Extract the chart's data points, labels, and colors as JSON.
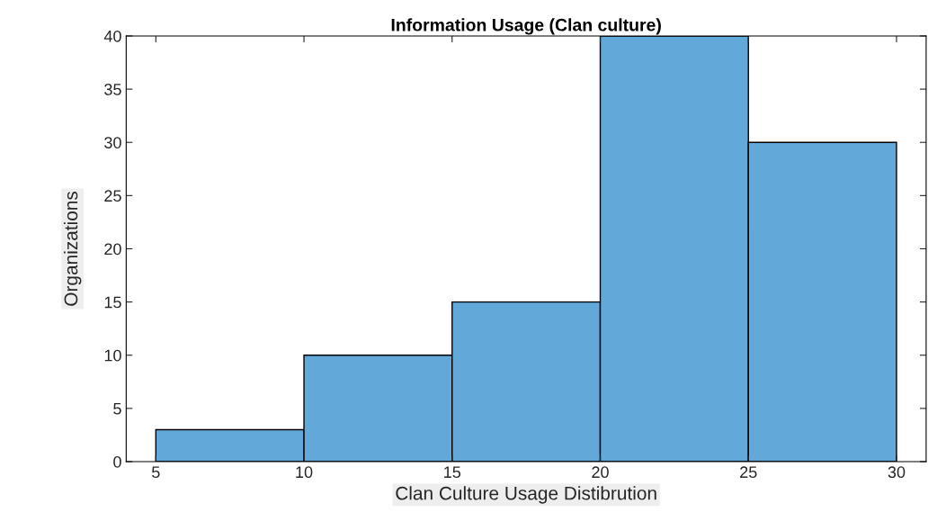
{
  "chart_data": {
    "type": "histogram",
    "title": "Information Usage (Clan culture)",
    "xlabel": "Clan Culture Usage Distibrution",
    "ylabel": "Organizations",
    "bins": [
      5,
      10,
      15,
      20,
      25,
      30
    ],
    "values": [
      3,
      10,
      15,
      40,
      30
    ],
    "color": "#62a8d8",
    "xlim": [
      4,
      31
    ],
    "xticks": [
      5,
      10,
      15,
      20,
      25,
      30
    ],
    "ylim": [
      0,
      40
    ],
    "yticks": [
      0,
      5,
      10,
      15,
      20,
      25,
      30,
      35,
      40
    ],
    "grid": false
  }
}
